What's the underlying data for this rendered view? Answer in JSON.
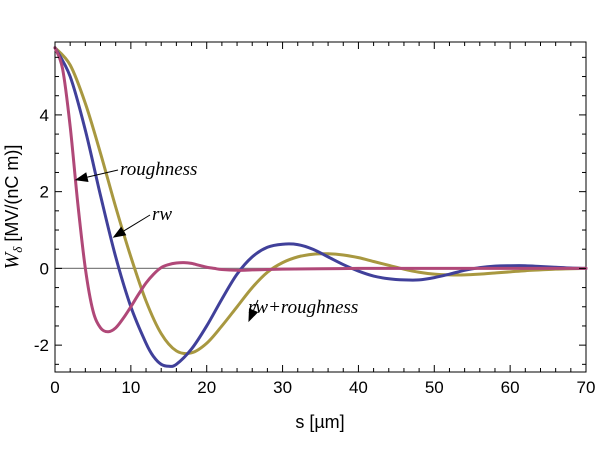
{
  "chart_data": {
    "type": "line",
    "title": "",
    "xlabel": "s [µm]",
    "ylabel": "W",
    "ylabel_sub": "δ",
    "ylabel_units": " [MV/(nC m)]",
    "xlim": [
      0,
      70
    ],
    "ylim": [
      -2.7,
      5.9
    ],
    "xticks": [
      0,
      10,
      20,
      30,
      40,
      50,
      60,
      70
    ],
    "yticks": [
      -2,
      0,
      2,
      4
    ],
    "zero_line": true,
    "series": [
      {
        "name": "roughness",
        "color": "#b04878",
        "x": [
          0,
          1,
          2,
          3,
          4,
          5,
          6,
          7,
          8,
          9,
          10,
          11,
          12,
          13,
          14,
          15,
          16,
          17,
          18,
          19,
          20,
          21,
          22,
          24,
          26,
          28,
          30,
          35,
          40,
          45,
          50,
          55,
          60,
          65,
          70
        ],
        "y": [
          5.75,
          5.2,
          3.7,
          1.7,
          0.0,
          -1.1,
          -1.55,
          -1.65,
          -1.55,
          -1.3,
          -1.0,
          -0.68,
          -0.38,
          -0.15,
          0.02,
          0.1,
          0.14,
          0.15,
          0.13,
          0.08,
          0.03,
          0.0,
          -0.03,
          -0.05,
          -0.04,
          -0.03,
          -0.02,
          -0.01,
          0.0,
          0.0,
          0.0,
          0.0,
          0.0,
          0.0,
          0.0
        ]
      },
      {
        "name": "rw",
        "color": "#40409a",
        "x": [
          0,
          2,
          4,
          6,
          8,
          10,
          12,
          13,
          14,
          15,
          16,
          18,
          20,
          22,
          24,
          26,
          28,
          30,
          32,
          34,
          36,
          38,
          40,
          42,
          44,
          46,
          48,
          50,
          52,
          54,
          56,
          58,
          60,
          62,
          64,
          66,
          68,
          70
        ],
        "y": [
          5.75,
          5.0,
          3.6,
          1.9,
          0.3,
          -1.0,
          -1.95,
          -2.3,
          -2.5,
          -2.55,
          -2.5,
          -2.1,
          -1.5,
          -0.8,
          -0.15,
          0.3,
          0.55,
          0.63,
          0.62,
          0.5,
          0.3,
          0.1,
          -0.07,
          -0.2,
          -0.27,
          -0.3,
          -0.3,
          -0.24,
          -0.15,
          -0.05,
          0.02,
          0.06,
          0.07,
          0.07,
          0.05,
          0.03,
          0.01,
          0.0
        ]
      },
      {
        "name": "rw+roughness",
        "color": "#a89840",
        "x": [
          0,
          2,
          4,
          6,
          8,
          10,
          12,
          14,
          16,
          18,
          20,
          22,
          24,
          26,
          28,
          30,
          32,
          34,
          36,
          38,
          40,
          42,
          44,
          46,
          48,
          50,
          52,
          54,
          56,
          58,
          60,
          62,
          64,
          66,
          68,
          70
        ],
        "y": [
          5.75,
          5.3,
          4.3,
          3.0,
          1.6,
          0.3,
          -0.85,
          -1.7,
          -2.15,
          -2.2,
          -1.95,
          -1.5,
          -1.0,
          -0.5,
          -0.1,
          0.15,
          0.3,
          0.37,
          0.38,
          0.35,
          0.28,
          0.18,
          0.08,
          -0.02,
          -0.1,
          -0.15,
          -0.17,
          -0.17,
          -0.15,
          -0.12,
          -0.09,
          -0.06,
          -0.04,
          -0.02,
          -0.01,
          0.0
        ]
      }
    ],
    "annotations": [
      {
        "text": "roughness",
        "arrow_to_x": 2.6,
        "arrow_to_y": 2.3
      },
      {
        "text": "rw",
        "arrow_to_x": 7.6,
        "arrow_to_y": 0.8
      },
      {
        "text": "rw+roughness",
        "arrow_to_x": 25.5,
        "arrow_to_y": -1.4
      }
    ]
  }
}
